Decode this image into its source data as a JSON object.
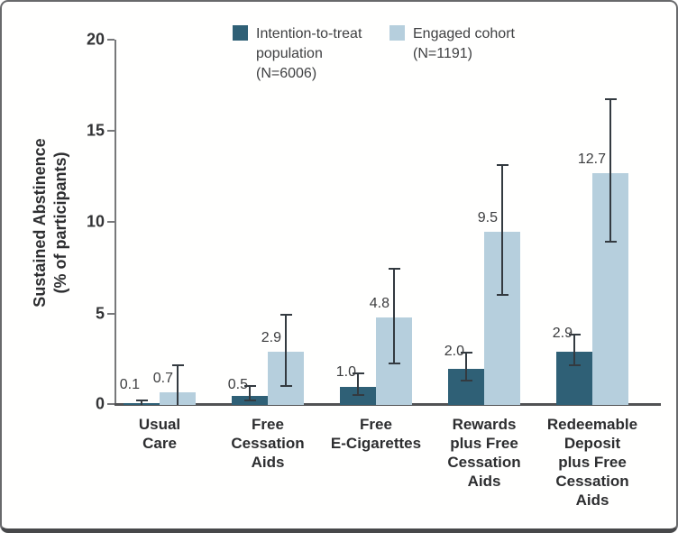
{
  "y_axis": {
    "title_lines": [
      "Sustained Abstinence",
      "(% of participants)"
    ]
  },
  "legend": {
    "items": [
      {
        "lines": [
          "Intention-to-treat",
          "population",
          "(N=6006)"
        ],
        "color": "#2f6076"
      },
      {
        "lines": [
          "Engaged cohort",
          "(N=1191)"
        ],
        "color": "#b6cfdd"
      }
    ]
  },
  "chart_data": {
    "type": "bar",
    "title": "",
    "xlabel": "",
    "ylabel": "Sustained Abstinence (% of participants)",
    "ylim": [
      0,
      20
    ],
    "yticks": [
      0,
      5,
      10,
      15,
      20
    ],
    "ytick_labels": [
      "0",
      "5",
      "10",
      "15",
      "20"
    ],
    "grid": false,
    "legend_position": "top",
    "error_bars": true,
    "categories": [
      "Usual Care",
      "Free Cessation Aids",
      "Free E-Cigarettes",
      "Rewards plus Free Cessation Aids",
      "Redeemable Deposit plus Free Cessation Aids"
    ],
    "category_lines": [
      [
        "Usual",
        "Care"
      ],
      [
        "Free",
        "Cessation",
        "Aids"
      ],
      [
        "Free",
        "E-Cigarettes"
      ],
      [
        "Rewards",
        "plus Free",
        "Cessation",
        "Aids"
      ],
      [
        "Redeemable",
        "Deposit",
        "plus Free",
        "Cessation",
        "Aids"
      ]
    ],
    "series": [
      {
        "name": "Intention-to-treat population (N=6006)",
        "color": "#2f6076",
        "values": [
          0.1,
          0.5,
          1.0,
          2.0,
          2.9
        ],
        "value_labels": [
          "0.1",
          "0.5",
          "1.0",
          "2.0",
          "2.9"
        ],
        "ci_lower": [
          0.0,
          0.2,
          0.5,
          1.3,
          2.1
        ],
        "ci_upper": [
          0.3,
          1.1,
          1.8,
          2.9,
          3.9
        ]
      },
      {
        "name": "Engaged cohort (N=1191)",
        "color": "#b6cfdd",
        "values": [
          0.7,
          2.9,
          4.8,
          9.5,
          12.7
        ],
        "value_labels": [
          "0.7",
          "2.9",
          "4.8",
          "9.5",
          "12.7"
        ],
        "ci_lower": [
          0.0,
          1.0,
          2.2,
          6.0,
          8.9
        ],
        "ci_upper": [
          2.2,
          5.0,
          7.5,
          13.2,
          16.8
        ]
      }
    ]
  },
  "colors": {
    "axis": "#77787a",
    "x_axis": "#515254",
    "error_bar": "#333a40",
    "border": "#68696b"
  }
}
